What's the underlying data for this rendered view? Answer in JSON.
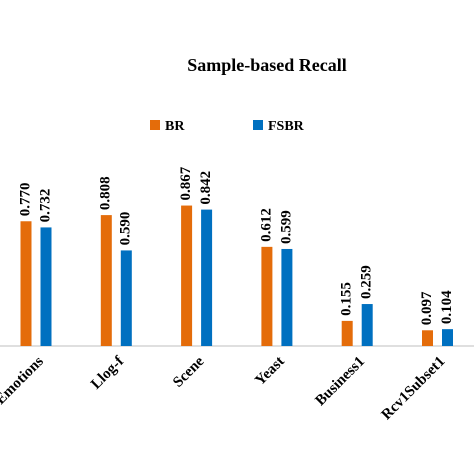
{
  "chart_data": {
    "type": "bar",
    "title": "Sample-based Recall",
    "categories": [
      "Emotions",
      "Llog-f",
      "Scene",
      "Yeast",
      "Business1",
      "Rcv1Subset1"
    ],
    "series": [
      {
        "name": "BR",
        "color": "#e46c0a",
        "values": [
          0.77,
          0.808,
          0.867,
          0.612,
          0.155,
          0.097
        ],
        "value_labels": [
          "0.770",
          "0.808",
          "0.867",
          "0.612",
          "0.155",
          "0.097"
        ]
      },
      {
        "name": "FSBR",
        "color": "#0070c0",
        "values": [
          0.732,
          0.59,
          0.842,
          0.599,
          0.259,
          0.104
        ],
        "value_labels": [
          "0.732",
          "0.590",
          "0.842",
          "0.599",
          "0.259",
          "0.104"
        ]
      }
    ],
    "ylim": [
      0,
      1
    ]
  }
}
